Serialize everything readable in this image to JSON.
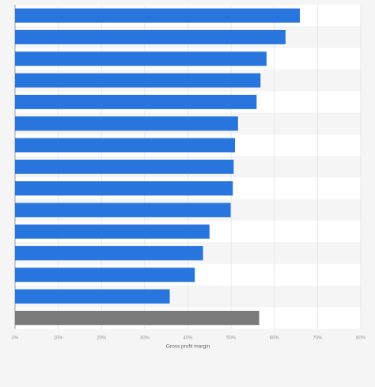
{
  "chart_data": {
    "type": "bar",
    "orientation": "horizontal",
    "xlabel": "Gross profit margin",
    "xlim": [
      0,
      80
    ],
    "x_ticks": [
      "0%",
      "10%",
      "20%",
      "30%",
      "40%",
      "50%",
      "60%",
      "70%",
      "80%"
    ],
    "y_tick_labels_visible": false,
    "grid": true,
    "values": [
      65.9,
      62.6,
      58.2,
      56.8,
      55.9,
      51.6,
      50.9,
      50.6,
      50.4,
      49.9,
      45.0,
      43.5,
      41.6,
      35.8,
      56.5
    ],
    "colors": [
      "#2876dd",
      "#2876dd",
      "#2876dd",
      "#2876dd",
      "#2876dd",
      "#2876dd",
      "#2876dd",
      "#2876dd",
      "#2876dd",
      "#2876dd",
      "#2876dd",
      "#2876dd",
      "#2876dd",
      "#2876dd",
      "#7a7a7a"
    ]
  }
}
